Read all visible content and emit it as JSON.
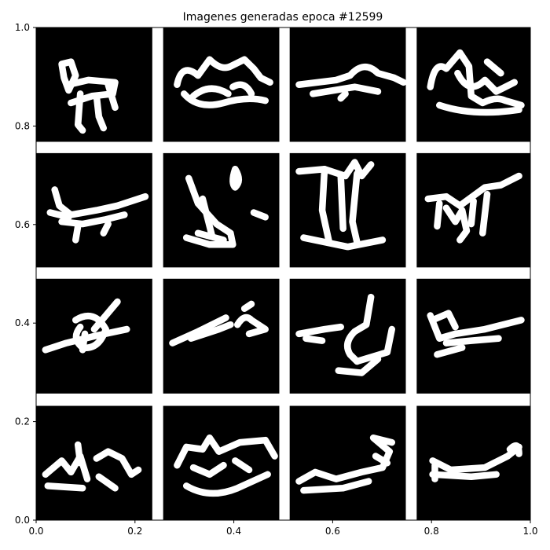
{
  "chart_data": {
    "type": "image_grid",
    "title": "Imagenes generadas epoca #12599",
    "xlabel": "",
    "ylabel": "",
    "xlim": [
      0.0,
      1.0
    ],
    "ylim": [
      0.0,
      1.0
    ],
    "xticks": [
      0.0,
      0.2,
      0.4,
      0.6,
      0.8,
      1.0
    ],
    "yticks": [
      0.0,
      0.2,
      0.4,
      0.6,
      0.8,
      1.0
    ],
    "xtick_labels": [
      "0.0",
      "0.2",
      "0.4",
      "0.6",
      "0.8",
      "1.0"
    ],
    "ytick_labels": [
      "0.0",
      "0.2",
      "0.4",
      "0.6",
      "0.8",
      "1.0"
    ],
    "grid": false,
    "colors": {
      "panel_background": "#000000",
      "stroke": "#ffffff",
      "figure_background": "#ffffff"
    },
    "panels": [
      {
        "row": 0,
        "col": 0,
        "extent": [
          0.0,
          0.235,
          0.768,
          1.0
        ]
      },
      {
        "row": 0,
        "col": 1,
        "extent": [
          0.257,
          0.492,
          0.768,
          1.0
        ]
      },
      {
        "row": 0,
        "col": 2,
        "extent": [
          0.513,
          0.748,
          0.768,
          1.0
        ]
      },
      {
        "row": 0,
        "col": 3,
        "extent": [
          0.77,
          1.0,
          0.768,
          1.0
        ]
      },
      {
        "row": 1,
        "col": 0,
        "extent": [
          0.0,
          0.235,
          0.513,
          0.745
        ]
      },
      {
        "row": 1,
        "col": 1,
        "extent": [
          0.257,
          0.492,
          0.513,
          0.745
        ]
      },
      {
        "row": 1,
        "col": 2,
        "extent": [
          0.513,
          0.748,
          0.513,
          0.745
        ]
      },
      {
        "row": 1,
        "col": 3,
        "extent": [
          0.77,
          1.0,
          0.513,
          0.745
        ]
      },
      {
        "row": 2,
        "col": 0,
        "extent": [
          0.0,
          0.235,
          0.257,
          0.49
        ]
      },
      {
        "row": 2,
        "col": 1,
        "extent": [
          0.257,
          0.492,
          0.257,
          0.49
        ]
      },
      {
        "row": 2,
        "col": 2,
        "extent": [
          0.513,
          0.748,
          0.257,
          0.49
        ]
      },
      {
        "row": 2,
        "col": 3,
        "extent": [
          0.77,
          1.0,
          0.257,
          0.49
        ]
      },
      {
        "row": 3,
        "col": 0,
        "extent": [
          0.0,
          0.235,
          0.0,
          0.232
        ]
      },
      {
        "row": 3,
        "col": 1,
        "extent": [
          0.257,
          0.492,
          0.0,
          0.232
        ]
      },
      {
        "row": 3,
        "col": 2,
        "extent": [
          0.513,
          0.748,
          0.0,
          0.232
        ]
      },
      {
        "row": 3,
        "col": 3,
        "extent": [
          0.77,
          1.0,
          0.0,
          0.232
        ]
      }
    ]
  }
}
